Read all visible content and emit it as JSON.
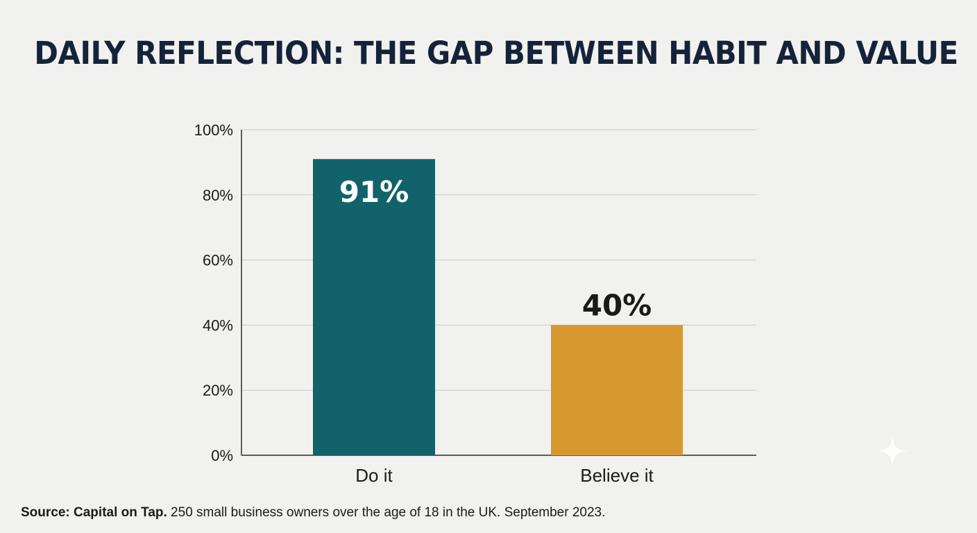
{
  "title": "DAILY REFLECTION: THE GAP BETWEEN HABIT AND VALUE",
  "source": {
    "label": "Source: Capital on Tap.",
    "text": " 250 small business owners over the age of 18 in the UK. September 2023."
  },
  "decoration": {
    "icon": "sparkle-icon"
  },
  "chart_data": {
    "type": "bar",
    "categories": [
      "Do it",
      "Believe it"
    ],
    "values": [
      91,
      40
    ],
    "data_labels": [
      "91%",
      "40%"
    ],
    "colors": [
      "#12626a",
      "#d6982f"
    ],
    "ylim": [
      0,
      100
    ],
    "yticks": [
      0,
      20,
      40,
      60,
      80,
      100
    ],
    "ytick_labels": [
      "0%",
      "20%",
      "40%",
      "60%",
      "80%",
      "100%"
    ],
    "grid": true,
    "xlabel": "",
    "ylabel": ""
  }
}
